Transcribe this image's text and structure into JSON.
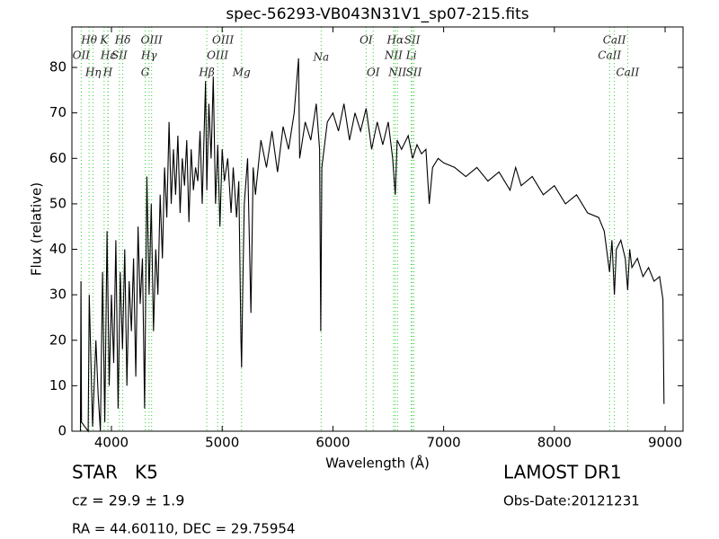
{
  "chart_data": {
    "type": "line",
    "title": "spec-56293-VB043N31V1_sp07-215.fits",
    "x_label": "Wavelength (Å)",
    "y_label": "Flux (relative)",
    "xlim": [
      3643,
      9162
    ],
    "ylim": [
      0,
      88.9
    ],
    "xticks": [
      4000,
      5000,
      6000,
      7000,
      8000,
      9000
    ],
    "yticks": [
      0,
      10,
      20,
      30,
      40,
      50,
      60,
      70,
      80
    ],
    "x": [
      3720,
      3725,
      3730,
      3760,
      3790,
      3800,
      3830,
      3860,
      3880,
      3900,
      3920,
      3940,
      3960,
      3980,
      4000,
      4020,
      4040,
      4060,
      4080,
      4100,
      4120,
      4140,
      4160,
      4180,
      4200,
      4220,
      4240,
      4260,
      4280,
      4300,
      4320,
      4340,
      4360,
      4380,
      4400,
      4420,
      4440,
      4460,
      4480,
      4500,
      4520,
      4540,
      4560,
      4580,
      4600,
      4620,
      4640,
      4660,
      4680,
      4700,
      4720,
      4740,
      4760,
      4780,
      4800,
      4820,
      4850,
      4861,
      4880,
      4900,
      4920,
      4940,
      4960,
      4980,
      5000,
      5020,
      5050,
      5080,
      5100,
      5130,
      5150,
      5170,
      5175,
      5185,
      5200,
      5230,
      5260,
      5280,
      5300,
      5350,
      5400,
      5450,
      5500,
      5550,
      5600,
      5650,
      5690,
      5700,
      5750,
      5800,
      5850,
      5880,
      5890,
      5900,
      5950,
      6000,
      6050,
      6100,
      6150,
      6200,
      6250,
      6300,
      6350,
      6400,
      6450,
      6500,
      6540,
      6563,
      6580,
      6620,
      6680,
      6720,
      6760,
      6800,
      6840,
      6870,
      6900,
      6950,
      7000,
      7100,
      7200,
      7300,
      7400,
      7500,
      7600,
      7650,
      7700,
      7800,
      7900,
      8000,
      8100,
      8200,
      8300,
      8400,
      8450,
      8498,
      8520,
      8542,
      8560,
      8600,
      8640,
      8662,
      8680,
      8700,
      8750,
      8800,
      8850,
      8900,
      8950,
      8980,
      8990
    ],
    "series": [
      {
        "name": "flux",
        "color": "#000000",
        "values": [
          0,
          33,
          2,
          1,
          0,
          30,
          1,
          20,
          8,
          0,
          35,
          2,
          44,
          10,
          30,
          15,
          42,
          5,
          35,
          18,
          40,
          10,
          33,
          22,
          38,
          12,
          45,
          28,
          38,
          5,
          56,
          30,
          50,
          22,
          40,
          30,
          52,
          38,
          58,
          47,
          68,
          50,
          62,
          52,
          65,
          48,
          60,
          54,
          64,
          46,
          62,
          53,
          58,
          55,
          66,
          50,
          77,
          53,
          72,
          60,
          78,
          50,
          63,
          45,
          62,
          55,
          60,
          48,
          58,
          47,
          55,
          20,
          14,
          30,
          50,
          60,
          26,
          58,
          52,
          64,
          58,
          66,
          57,
          67,
          62,
          70,
          82,
          60,
          68,
          64,
          72,
          62,
          22,
          58,
          68,
          70,
          66,
          72,
          64,
          70,
          66,
          71,
          62,
          68,
          63,
          68,
          60,
          52,
          64,
          62,
          65,
          60,
          63,
          61,
          62,
          50,
          58,
          60,
          59,
          58,
          56,
          58,
          55,
          57,
          53,
          58,
          54,
          56,
          52,
          54,
          50,
          52,
          48,
          47,
          44,
          35,
          42,
          30,
          40,
          42,
          38,
          31,
          40,
          36,
          38,
          34,
          36,
          33,
          34,
          29,
          6
        ]
      }
    ],
    "lines": [
      {
        "label": "OII",
        "wavelength": 3727
      },
      {
        "label": "Hθ",
        "wavelength": 3798
      },
      {
        "label": "Hη",
        "wavelength": 3835
      },
      {
        "label": "K",
        "wavelength": 3934
      },
      {
        "label": "Hε",
        "wavelength": 3970
      },
      {
        "label": "H",
        "wavelength": 3968
      },
      {
        "label": "SII",
        "wavelength": 4072
      },
      {
        "label": "Hδ",
        "wavelength": 4102
      },
      {
        "label": "G",
        "wavelength": 4305
      },
      {
        "label": "Hγ",
        "wavelength": 4340
      },
      {
        "label": "OIII",
        "wavelength": 4363
      },
      {
        "label": "Hβ",
        "wavelength": 4861
      },
      {
        "label": "OIII",
        "wavelength": 4959
      },
      {
        "label": "OIII",
        "wavelength": 5007
      },
      {
        "label": "Mg",
        "wavelength": 5175
      },
      {
        "label": "Na",
        "wavelength": 5894
      },
      {
        "label": "OI",
        "wavelength": 6300
      },
      {
        "label": "OI",
        "wavelength": 6364
      },
      {
        "label": "NII",
        "wavelength": 6548
      },
      {
        "label": "Hα",
        "wavelength": 6563
      },
      {
        "label": "NII",
        "wavelength": 6583
      },
      {
        "label": "Li",
        "wavelength": 6708
      },
      {
        "label": "SII",
        "wavelength": 6716
      },
      {
        "label": "SII",
        "wavelength": 6731
      },
      {
        "label": "CaII",
        "wavelength": 8498
      },
      {
        "label": "CaII",
        "wavelength": 8542
      },
      {
        "label": "CaII",
        "wavelength": 8662
      }
    ]
  },
  "info": {
    "object": "STAR   K5",
    "redshift": "cz = 29.9 ± 1.9",
    "position": "RA = 44.60110, DEC = 29.75954",
    "survey": "LAMOST DR1",
    "obs_date": "Obs-Date:20121231"
  }
}
